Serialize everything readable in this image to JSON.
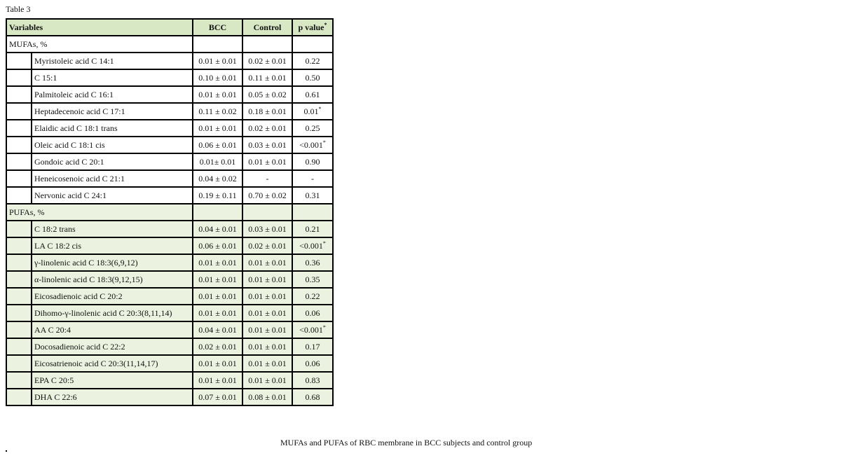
{
  "title": "Table 3",
  "headers": {
    "variables": "Variables",
    "bcc": "BCC",
    "control": "Control",
    "p": "p value",
    "p_mark": "*"
  },
  "groups": [
    {
      "label": "MUFAs, %",
      "rows": [
        {
          "name": "Myristoleic acid C 14:1",
          "bcc": "0.01 ± 0.01",
          "control": "0.02 ± 0.01",
          "p": "0.22",
          "sig": ""
        },
        {
          "name": "C 15:1",
          "bcc": "0.10 ± 0.01",
          "control": "0.11 ± 0.01",
          "p": "0.50",
          "sig": ""
        },
        {
          "name": "Palmitoleic acid C 16:1",
          "bcc": "0.01 ± 0.01",
          "control": "0.05 ± 0.02",
          "p": "0.61",
          "sig": ""
        },
        {
          "name": "Heptadecenoic acid C 17:1",
          "bcc": "0.11 ± 0.02",
          "control": "0.18 ± 0.01",
          "p": "0.01",
          "sig": "*"
        },
        {
          "name": "Elaidic acid C 18:1 trans",
          "bcc": "0.01 ± 0.01",
          "control": "0.02 ± 0.01",
          "p": "0.25",
          "sig": ""
        },
        {
          "name": "Oleic acid C 18:1 cis",
          "bcc": "0.06 ± 0.01",
          "control": "0.03 ± 0.01",
          "p": "<0.001",
          "sig": "*"
        },
        {
          "name": "Gondoic acid C 20:1",
          "bcc": "0.01± 0.01",
          "control": "0.01 ± 0.01",
          "p": "0.90",
          "sig": ""
        },
        {
          "name": "Heneicosenoic acid C 21:1",
          "bcc": "0.04 ± 0.02",
          "control": "-",
          "p": "-",
          "sig": ""
        },
        {
          "name": "Nervonic acid C 24:1",
          "bcc": "0.19 ± 0.11",
          "control": "0.70 ± 0.02",
          "p": "0.31",
          "sig": ""
        }
      ]
    },
    {
      "label": "PUFAs, %",
      "rows": [
        {
          "name": "C 18:2 trans",
          "bcc": "0.04 ± 0.01",
          "control": "0.03 ± 0.01",
          "p": "0.21",
          "sig": ""
        },
        {
          "name": "LA C 18:2 cis",
          "bcc": "0.06 ± 0.01",
          "control": "0.02 ± 0.01",
          "p": "<0.001",
          "sig": "*"
        },
        {
          "name": "γ-linolenic acid C 18:3(6,9,12)",
          "bcc": "0.01 ± 0.01",
          "control": "0.01 ± 0.01",
          "p": "0.36",
          "sig": ""
        },
        {
          "name": "α-linolenic acid C 18:3(9,12,15)",
          "bcc": "0.01 ± 0.01",
          "control": "0.01 ± 0.01",
          "p": "0.35",
          "sig": ""
        },
        {
          "name": "Eicosadienoic acid C 20:2",
          "bcc": "0.01 ± 0.01",
          "control": "0.01 ± 0.01",
          "p": "0.22",
          "sig": ""
        },
        {
          "name": "Dihomo-γ-linolenic acid C 20:3(8,11,14)",
          "bcc": "0.01 ± 0.01",
          "control": "0.01 ± 0.01",
          "p": "0.06",
          "sig": ""
        },
        {
          "name": "AA C 20:4",
          "bcc": "0.04 ± 0.01",
          "control": "0.01 ± 0.01",
          "p": "<0.001",
          "sig": "*"
        },
        {
          "name": "Docosadienoic acid C 22:2",
          "bcc": "0.02 ± 0.01",
          "control": "0.01 ± 0.01",
          "p": "0.17",
          "sig": ""
        },
        {
          "name": "Eicosatrienoic acid C 20:3(11,14,17)",
          "bcc": "0.01 ± 0.01",
          "control": "0.01 ± 0.01",
          "p": "0.06",
          "sig": ""
        },
        {
          "name": "EPA C 20:5",
          "bcc": "0.01 ± 0.01",
          "control": "0.01 ± 0.01",
          "p": "0.83",
          "sig": ""
        },
        {
          "name": "DHA C 22:6",
          "bcc": "0.07 ± 0.01",
          "control": "0.08 ± 0.01",
          "p": "0.68",
          "sig": ""
        }
      ]
    }
  ],
  "caption": "MUFAs and PUFAs of RBC membrane in BCC subjects and control group"
}
